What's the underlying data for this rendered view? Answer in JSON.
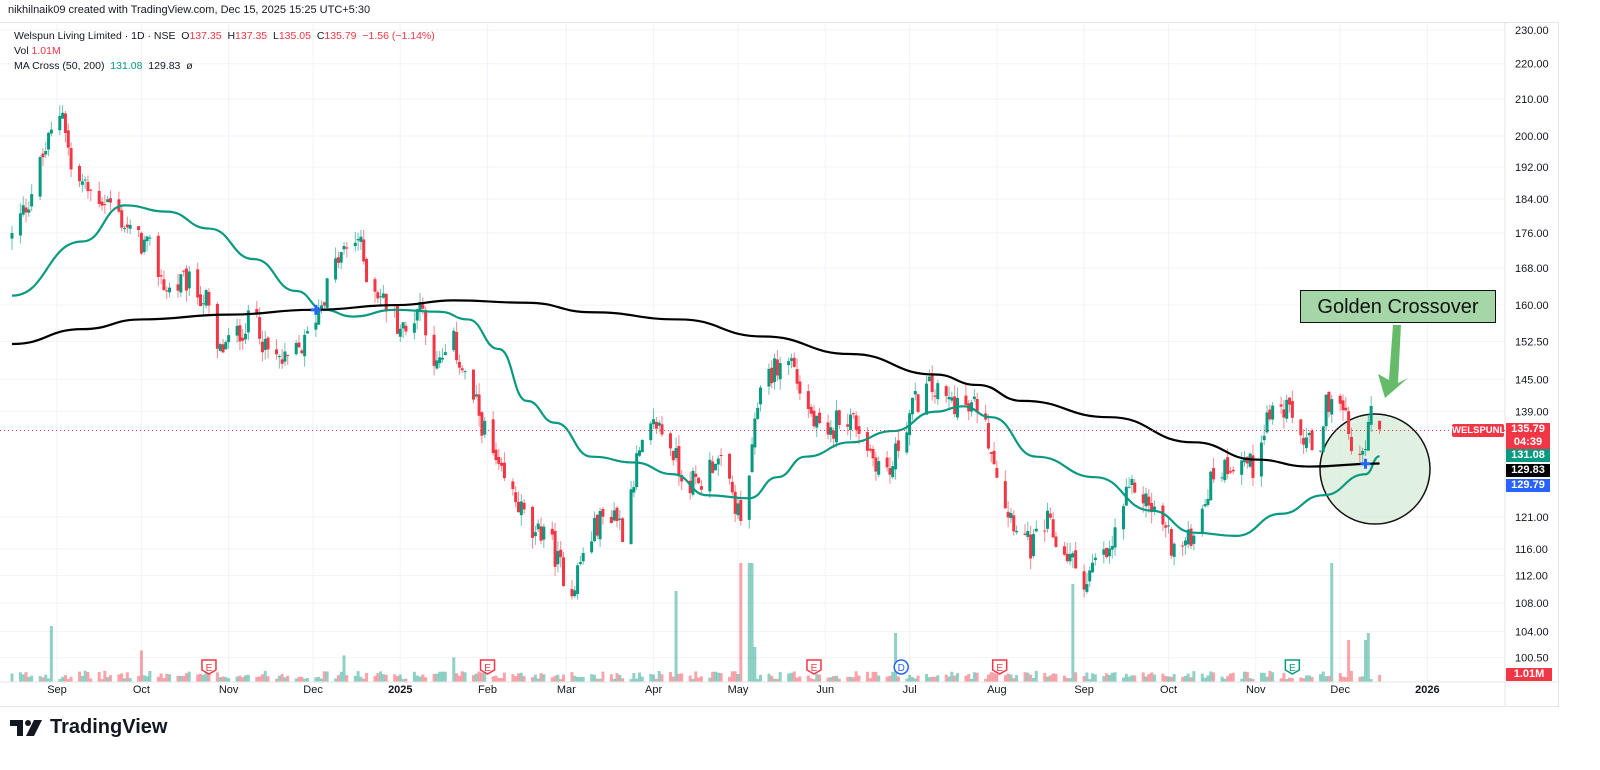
{
  "header": {
    "credit": "nikhilnaik09 created with TradingView.com, Dec 15, 2025 15:25 UTC+5:30"
  },
  "legend": {
    "symbol": "Welspun Living Limited · 1D · NSE",
    "o_label": "O",
    "o": "137.35",
    "h_label": "H",
    "h": "137.35",
    "l_label": "L",
    "l": "135.05",
    "c_label": "C",
    "c": "135.79",
    "change": "−1.56 (−1.14%)",
    "vol_label": "Vol",
    "vol": "1.01M",
    "ma_label": "MA Cross (50, 200)",
    "ma_fast": "131.08",
    "ma_slow": "129.83",
    "ma_symbol": "ø"
  },
  "price_tags": {
    "symbol": "WELSPUNLIV",
    "last": "135.79",
    "countdown": "04:39",
    "ma_fast": "131.08",
    "ma_slow": "129.83",
    "cross": "129.79",
    "volume": "1.01M"
  },
  "annotation": {
    "text": "Golden Crossover"
  },
  "logo": {
    "text": "TradingView"
  },
  "colors": {
    "up": "#089981",
    "down": "#f23645",
    "ma_fast": "#089981",
    "ma_slow": "#000000",
    "cross": "#2962ff",
    "annotation": "#a5d6a7"
  },
  "chart_data": {
    "type": "candlestick",
    "title": "Welspun Living Limited · 1D · NSE",
    "yscale": "log",
    "ylim": [
      99,
      232
    ],
    "y_ticks": [
      "230.00",
      "220.00",
      "210.00",
      "200.00",
      "192.00",
      "184.00",
      "176.00",
      "168.00",
      "160.00",
      "152.50",
      "145.00",
      "139.00",
      "121.00",
      "116.00",
      "112.00",
      "108.00",
      "104.00",
      "100.50"
    ],
    "x_ticks": [
      [
        "Sep",
        "2024-09-01"
      ],
      [
        "Oct",
        "2024-10-01"
      ],
      [
        "Nov",
        "2024-11-01"
      ],
      [
        "Dec",
        "2024-12-01"
      ],
      [
        "2025",
        "2025-01-01"
      ],
      [
        "Feb",
        "2025-02-01"
      ],
      [
        "Mar",
        "2025-03-01"
      ],
      [
        "Apr",
        "2025-04-01"
      ],
      [
        "May",
        "2025-05-01"
      ],
      [
        "Jun",
        "2025-06-01"
      ],
      [
        "Jul",
        "2025-07-01"
      ],
      [
        "Aug",
        "2025-08-01"
      ],
      [
        "Sep",
        "2025-09-01"
      ],
      [
        "Oct",
        "2025-10-01"
      ],
      [
        "Nov",
        "2025-11-01"
      ],
      [
        "Dec",
        "2025-12-01"
      ],
      [
        "2026",
        "2026-01-01"
      ]
    ],
    "close_anchors": [
      [
        "2024-08-16",
        175
      ],
      [
        "2024-08-22",
        184
      ],
      [
        "2024-08-28",
        196.5
      ],
      [
        "2024-09-03",
        208
      ],
      [
        "2024-09-06",
        191
      ],
      [
        "2024-09-12",
        186
      ],
      [
        "2024-09-20",
        183
      ],
      [
        "2024-09-27",
        176
      ],
      [
        "2024-10-04",
        172
      ],
      [
        "2024-10-10",
        163
      ],
      [
        "2024-10-17",
        165
      ],
      [
        "2024-10-24",
        161
      ],
      [
        "2024-10-28",
        150
      ],
      [
        "2024-11-04",
        154
      ],
      [
        "2024-11-11",
        158
      ],
      [
        "2024-11-14",
        150.5
      ],
      [
        "2024-11-21",
        148
      ],
      [
        "2024-11-28",
        152
      ],
      [
        "2024-12-04",
        161
      ],
      [
        "2024-12-10",
        170
      ],
      [
        "2024-12-17",
        175
      ],
      [
        "2024-12-20",
        167
      ],
      [
        "2024-12-27",
        160
      ],
      [
        "2025-01-03",
        154
      ],
      [
        "2025-01-08",
        161
      ],
      [
        "2025-01-14",
        147
      ],
      [
        "2025-01-20",
        152
      ],
      [
        "2025-01-24",
        145.5
      ],
      [
        "2025-01-30",
        137
      ],
      [
        "2025-02-05",
        128
      ],
      [
        "2025-02-12",
        123
      ],
      [
        "2025-02-18",
        117
      ],
      [
        "2025-02-21",
        120
      ],
      [
        "2025-02-26",
        114
      ],
      [
        "2025-03-03",
        110
      ],
      [
        "2025-03-06",
        114
      ],
      [
        "2025-03-12",
        120
      ],
      [
        "2025-03-18",
        122
      ],
      [
        "2025-03-21",
        119
      ],
      [
        "2025-03-26",
        130
      ],
      [
        "2025-04-02",
        137
      ],
      [
        "2025-04-07",
        133
      ],
      [
        "2025-04-11",
        128
      ],
      [
        "2025-04-17",
        126
      ],
      [
        "2025-04-23",
        131
      ],
      [
        "2025-04-28",
        126
      ],
      [
        "2025-05-02",
        120
      ],
      [
        "2025-05-06",
        131
      ],
      [
        "2025-05-09",
        145
      ],
      [
        "2025-05-14",
        147
      ],
      [
        "2025-05-20",
        149
      ],
      [
        "2025-05-23",
        143
      ],
      [
        "2025-05-28",
        137
      ],
      [
        "2025-06-02",
        133
      ],
      [
        "2025-06-06",
        139
      ],
      [
        "2025-06-12",
        137
      ],
      [
        "2025-06-18",
        131
      ],
      [
        "2025-06-24",
        128
      ],
      [
        "2025-06-27",
        133
      ],
      [
        "2025-07-02",
        140
      ],
      [
        "2025-07-08",
        143.5
      ],
      [
        "2025-07-14",
        141
      ],
      [
        "2025-07-18",
        141
      ],
      [
        "2025-07-22",
        139
      ],
      [
        "2025-07-25",
        140.5
      ],
      [
        "2025-07-30",
        133
      ],
      [
        "2025-08-04",
        123
      ],
      [
        "2025-08-08",
        120
      ],
      [
        "2025-08-13",
        116
      ],
      [
        "2025-08-19",
        120
      ],
      [
        "2025-08-22",
        117
      ],
      [
        "2025-08-28",
        114
      ],
      [
        "2025-09-02",
        111
      ],
      [
        "2025-09-05",
        114
      ],
      [
        "2025-09-10",
        115
      ],
      [
        "2025-09-15",
        123
      ],
      [
        "2025-09-19",
        126
      ],
      [
        "2025-09-24",
        123
      ],
      [
        "2025-09-29",
        120
      ],
      [
        "2025-10-03",
        116
      ],
      [
        "2025-10-08",
        117
      ],
      [
        "2025-10-13",
        123
      ],
      [
        "2025-10-17",
        128
      ],
      [
        "2025-10-23",
        130
      ],
      [
        "2025-10-27",
        131
      ],
      [
        "2025-10-31",
        129
      ],
      [
        "2025-11-04",
        137
      ],
      [
        "2025-11-07",
        139.5
      ],
      [
        "2025-11-12",
        139
      ],
      [
        "2025-11-17",
        135
      ],
      [
        "2025-11-20",
        133
      ],
      [
        "2025-11-24",
        130
      ],
      [
        "2025-11-26",
        140.5
      ],
      [
        "2025-11-28",
        142
      ],
      [
        "2025-12-02",
        139
      ],
      [
        "2025-12-05",
        133
      ],
      [
        "2025-12-09",
        130
      ],
      [
        "2025-12-11",
        139
      ],
      [
        "2025-12-15",
        135.79
      ]
    ],
    "last_candle": {
      "open": 137.35,
      "high": 137.35,
      "low": 135.05,
      "close": 135.79
    },
    "series": [
      {
        "name": "MA 50",
        "points": [
          [
            "2024-08-16",
            162
          ],
          [
            "2024-09-10",
            174
          ],
          [
            "2024-09-25",
            182.5
          ],
          [
            "2024-10-10",
            181
          ],
          [
            "2024-10-25",
            177
          ],
          [
            "2024-11-10",
            170
          ],
          [
            "2024-11-25",
            163
          ],
          [
            "2024-12-05",
            159
          ],
          [
            "2024-12-15",
            157.6
          ],
          [
            "2024-12-30",
            159
          ],
          [
            "2025-01-15",
            158.6
          ],
          [
            "2025-01-25",
            157
          ],
          [
            "2025-02-05",
            151
          ],
          [
            "2025-02-15",
            141
          ],
          [
            "2025-02-25",
            137
          ],
          [
            "2025-03-10",
            131
          ],
          [
            "2025-03-25",
            130
          ],
          [
            "2025-04-08",
            128
          ],
          [
            "2025-04-20",
            124.5
          ],
          [
            "2025-05-05",
            124
          ],
          [
            "2025-05-15",
            127.5
          ],
          [
            "2025-05-25",
            131
          ],
          [
            "2025-06-10",
            133.5
          ],
          [
            "2025-06-25",
            135.5
          ],
          [
            "2025-07-10",
            139
          ],
          [
            "2025-07-20",
            140
          ],
          [
            "2025-07-30",
            138
          ],
          [
            "2025-08-15",
            131
          ],
          [
            "2025-09-05",
            127.5
          ],
          [
            "2025-09-25",
            122
          ],
          [
            "2025-10-10",
            118.5
          ],
          [
            "2025-10-25",
            118
          ],
          [
            "2025-11-10",
            121.5
          ],
          [
            "2025-11-25",
            124.5
          ],
          [
            "2025-12-10",
            128
          ],
          [
            "2025-12-15",
            131.08
          ]
        ]
      },
      {
        "name": "MA 200",
        "points": [
          [
            "2024-08-16",
            152
          ],
          [
            "2024-09-10",
            155
          ],
          [
            "2024-10-01",
            157
          ],
          [
            "2024-11-01",
            158
          ],
          [
            "2024-12-01",
            159
          ],
          [
            "2024-12-31",
            160
          ],
          [
            "2025-01-20",
            161
          ],
          [
            "2025-02-15",
            160.5
          ],
          [
            "2025-03-10",
            158.5
          ],
          [
            "2025-04-10",
            157
          ],
          [
            "2025-05-10",
            153.5
          ],
          [
            "2025-06-10",
            150
          ],
          [
            "2025-07-10",
            146
          ],
          [
            "2025-07-25",
            144
          ],
          [
            "2025-08-10",
            141
          ],
          [
            "2025-09-10",
            138
          ],
          [
            "2025-10-10",
            133.5
          ],
          [
            "2025-11-01",
            130.5
          ],
          [
            "2025-11-20",
            129.3
          ],
          [
            "2025-12-15",
            129.83
          ]
        ]
      }
    ],
    "crosses": [
      [
        "2024-12-02",
        159
      ],
      [
        "2025-12-10",
        129.79
      ]
    ],
    "volume_unit": "M",
    "volume_spikes": [
      [
        "2024-08-30",
        8
      ],
      [
        "2024-10-01",
        4.5
      ],
      [
        "2024-12-12",
        3.8
      ],
      [
        "2025-01-20",
        3.5
      ],
      [
        "2025-04-09",
        13
      ],
      [
        "2025-05-02",
        17
      ],
      [
        "2025-05-05",
        17
      ],
      [
        "2025-05-06",
        17
      ],
      [
        "2025-05-07",
        5
      ],
      [
        "2025-06-26",
        7
      ],
      [
        "2025-08-28",
        14
      ],
      [
        "2025-11-28",
        17
      ],
      [
        "2025-12-04",
        6
      ],
      [
        "2025-12-10",
        6
      ],
      [
        "2025-12-11",
        7
      ]
    ],
    "events": [
      [
        "E",
        "2024-10-25",
        "#f23645"
      ],
      [
        "E",
        "2025-02-01",
        "#f23645"
      ],
      [
        "E",
        "2025-05-28",
        "#f23645"
      ],
      [
        "D",
        "2025-06-28",
        "#2962ff"
      ],
      [
        "E",
        "2025-08-02",
        "#f23645"
      ],
      [
        "E",
        "2025-11-14",
        "#089981"
      ]
    ]
  }
}
